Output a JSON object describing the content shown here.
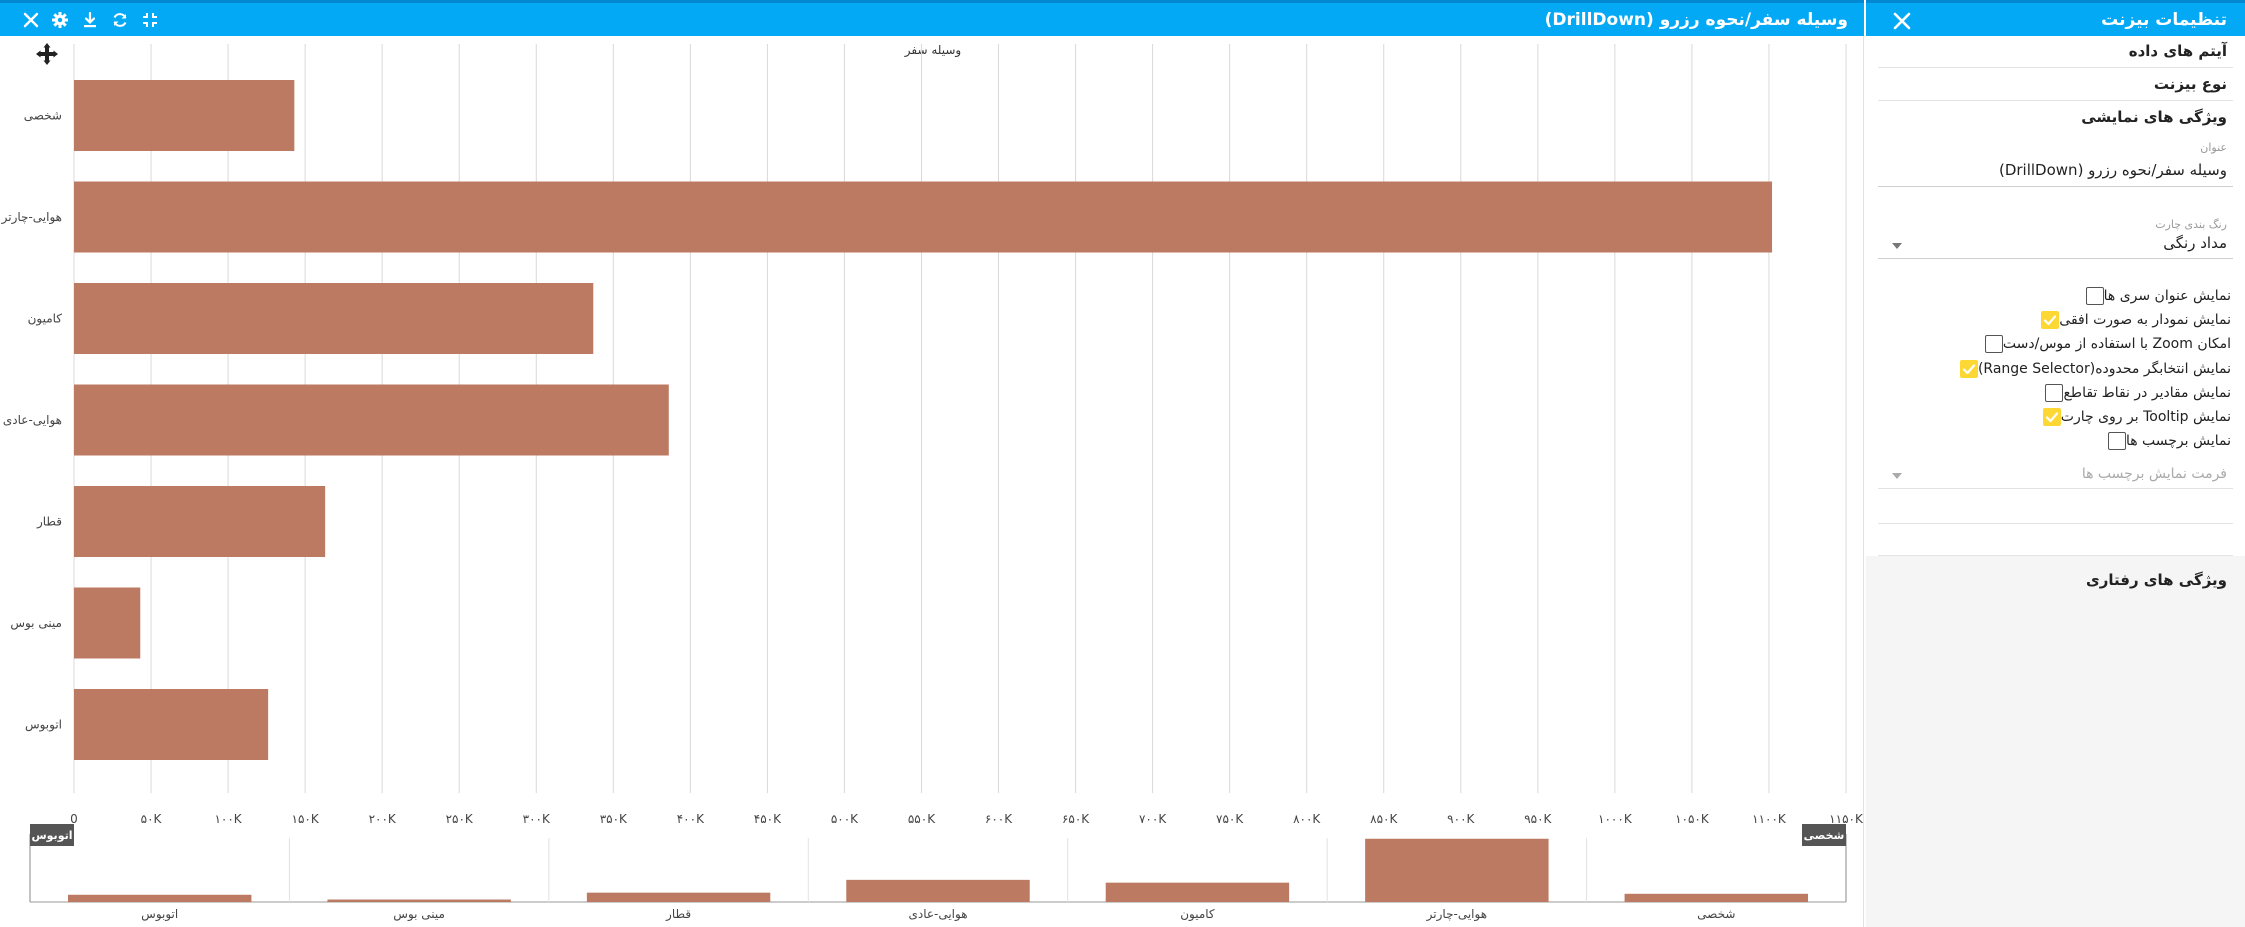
{
  "chart_panel": {
    "title": "وسیله سفر/نحوه رزرو (DrillDown)",
    "icons": [
      "close-icon",
      "gear-icon",
      "download-icon",
      "refresh-icon",
      "collapse-icon"
    ]
  },
  "chart_data": {
    "type": "bar",
    "orientation": "horizontal",
    "title": "وسیله سفر",
    "categories": [
      "شخصی",
      "هوایی-چارتر",
      "کامیون",
      "هوایی-عادی",
      "قطار",
      "مینی بوس",
      "اتوبوس"
    ],
    "values": [
      143000,
      1102000,
      337000,
      386000,
      163000,
      43000,
      126000
    ],
    "x_ticks": [
      {
        "value": 0,
        "label": "0"
      },
      {
        "value": 50000,
        "label": "۵۰K"
      },
      {
        "value": 100000,
        "label": "۱۰۰K"
      },
      {
        "value": 150000,
        "label": "۱۵۰K"
      },
      {
        "value": 200000,
        "label": "۲۰۰K"
      },
      {
        "value": 250000,
        "label": "۲۵۰K"
      },
      {
        "value": 300000,
        "label": "۳۰۰K"
      },
      {
        "value": 350000,
        "label": "۳۵۰K"
      },
      {
        "value": 400000,
        "label": "۴۰۰K"
      },
      {
        "value": 450000,
        "label": "۴۵۰K"
      },
      {
        "value": 500000,
        "label": "۵۰۰K"
      },
      {
        "value": 550000,
        "label": "۵۵۰K"
      },
      {
        "value": 600000,
        "label": "۶۰۰K"
      },
      {
        "value": 650000,
        "label": "۶۵۰K"
      },
      {
        "value": 700000,
        "label": "۷۰۰K"
      },
      {
        "value": 750000,
        "label": "۷۵۰K"
      },
      {
        "value": 800000,
        "label": "۸۰۰K"
      },
      {
        "value": 850000,
        "label": "۸۵۰K"
      },
      {
        "value": 900000,
        "label": "۹۰۰K"
      },
      {
        "value": 950000,
        "label": "۹۵۰K"
      },
      {
        "value": 1000000,
        "label": "۱۰۰۰K"
      },
      {
        "value": 1050000,
        "label": "۱۰۵۰K"
      },
      {
        "value": 1100000,
        "label": "۱۱۰۰K"
      },
      {
        "value": 1150000,
        "label": "۱۱۵۰K"
      }
    ],
    "xlim": [
      0,
      1150000
    ],
    "grid": true,
    "bar_color": "#bc7a62",
    "range_selector": {
      "categories": [
        "اتوبوس",
        "مینی بوس",
        "قطار",
        "هوایی-عادی",
        "کامیون",
        "هوایی-چارتر",
        "شخصی"
      ],
      "values": [
        126000,
        43000,
        163000,
        386000,
        337000,
        1102000,
        143000
      ],
      "left_handle_label": "اتوبوس",
      "right_handle_label": "شخصی"
    }
  },
  "settings": {
    "title": "تنظیمات بیزنت",
    "sections": {
      "data_items": "آیتم های داده",
      "widget_type": "نوع بیزنت",
      "display_props": "ویژگی های نمایشی",
      "behavior_props": "ویژگی های رفتاری"
    },
    "title_field": {
      "label": "عنوان",
      "value": "وسیله سفر/نحوه رزرو (DrillDown)"
    },
    "coloring_field": {
      "label": "رنگ بندی چارت",
      "value": "مداد رنگی"
    },
    "options": [
      {
        "label": "نمایش عنوان سری ها",
        "checked": false
      },
      {
        "label": "نمایش نمودار به صورت افقی",
        "checked": true
      },
      {
        "label": "امکان Zoom با استفاده از موس/دست",
        "checked": false
      },
      {
        "label": "نمایش انتخابگر محدوده(Range Selector)",
        "checked": true
      },
      {
        "label": "نمایش مقادیر در نقاط تقاطع",
        "checked": false
      },
      {
        "label": "نمایش Tooltip بر روی چارت",
        "checked": true
      },
      {
        "label": "نمایش برچسب ها",
        "checked": false
      }
    ],
    "label_format_placeholder": "فرمت نمایش برچسب ها"
  }
}
